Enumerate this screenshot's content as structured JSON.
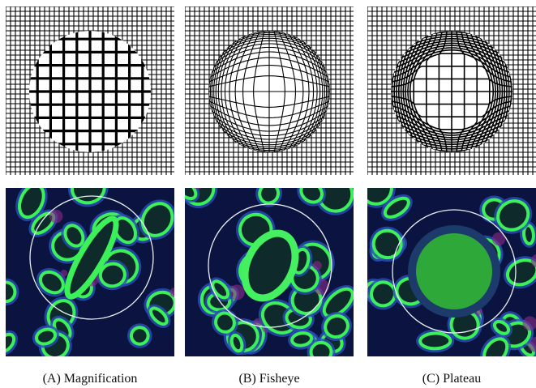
{
  "captions": [
    "(A) Magnification",
    "(B) Fisheye",
    "(C) Plateau"
  ]
}
